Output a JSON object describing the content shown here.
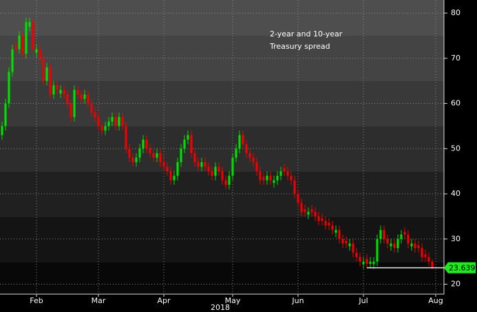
{
  "chart_data": {
    "type": "candlestick",
    "annotation": [
      "2-year and 10-year",
      "Treasury spread"
    ],
    "year_label": "2018",
    "up_color": "#00dd00",
    "down_color": "#ee0000",
    "grid": true,
    "ylim": [
      17.8,
      82.9
    ],
    "yticks": [
      20,
      30,
      40,
      50,
      60,
      70,
      80
    ],
    "xlim": [
      -0.6,
      128.4
    ],
    "xticks": [
      {
        "value": 10,
        "label": "Feb"
      },
      {
        "value": 28,
        "label": "Mar"
      },
      {
        "value": 47,
        "label": "Apr"
      },
      {
        "value": 67,
        "label": "May"
      },
      {
        "value": 86,
        "label": "Jun"
      },
      {
        "value": 105,
        "label": "Jul"
      },
      {
        "value": 126,
        "label": "Aug"
      }
    ],
    "open": [
      53,
      55,
      60,
      67,
      72.8,
      72,
      75,
      71,
      77,
      78,
      71.2,
      72,
      70,
      65,
      68,
      62,
      64,
      62.2,
      63,
      62,
      60,
      57,
      63,
      62,
      61,
      62,
      60,
      58,
      57,
      55,
      54,
      55,
      56,
      57,
      55,
      57,
      55,
      50,
      48,
      47,
      48,
      50,
      52,
      50,
      49,
      48,
      49,
      47,
      46,
      45,
      43,
      44,
      47,
      50,
      52,
      53,
      49,
      47,
      46,
      47,
      46,
      45,
      44,
      46,
      45,
      43,
      42,
      44,
      48,
      50,
      53,
      51,
      49,
      48,
      47,
      45,
      43.8,
      43,
      44,
      42.4,
      43,
      44,
      45.6,
      45,
      44,
      43,
      40,
      38,
      36.6,
      35.4,
      36.6,
      36,
      35,
      34.6,
      34,
      33.6,
      33,
      31.4,
      32,
      30,
      29.6,
      28.4,
      29,
      27,
      26,
      24.4,
      25.6,
      24.5,
      24.4,
      25,
      30,
      32,
      30,
      28.4,
      29,
      28,
      30,
      31.6,
      31,
      28.4,
      29,
      28.6,
      28,
      26.6,
      26,
      25
    ],
    "high": [
      56,
      61,
      68,
      73,
      73.8,
      76,
      76,
      79,
      79,
      79,
      73,
      73,
      71,
      69,
      69,
      65,
      65,
      64,
      64,
      63,
      61,
      64,
      64,
      63,
      63,
      63,
      61,
      59,
      58,
      56,
      56,
      57,
      58,
      58,
      58,
      58,
      56,
      51,
      49,
      49,
      51,
      53,
      53,
      51,
      50,
      50,
      50,
      48,
      47,
      46,
      45,
      48,
      51,
      53,
      54,
      54,
      50,
      48,
      48,
      48,
      47,
      46,
      47,
      47,
      46,
      44,
      45,
      49,
      51,
      54,
      54,
      52,
      50,
      49,
      48,
      46,
      44.8,
      45,
      45,
      44,
      45,
      46,
      46.6,
      46,
      45,
      44,
      41,
      39,
      37.6,
      37,
      37.6,
      37,
      36,
      35.6,
      35,
      34.6,
      34,
      33,
      33,
      31,
      30.6,
      30,
      30,
      28,
      27,
      26,
      26.6,
      26,
      26,
      31,
      33,
      33,
      31,
      30,
      30,
      31,
      32,
      32.6,
      32,
      30,
      30,
      29.6,
      29,
      27.6,
      27,
      25.5
    ],
    "low": [
      52,
      54,
      59,
      66,
      71,
      71,
      70,
      70,
      76,
      71,
      70.2,
      69,
      64,
      64,
      61,
      61,
      62,
      61.2,
      61,
      59,
      56,
      56,
      61,
      60,
      60,
      59,
      57,
      56,
      54,
      53,
      53,
      54,
      55,
      54,
      54,
      54,
      49,
      47,
      46,
      46,
      47,
      49,
      49,
      48,
      47,
      47,
      46,
      45,
      44,
      42,
      42,
      43,
      46,
      49,
      51,
      48,
      46,
      45,
      45,
      45,
      44,
      43,
      43,
      44,
      42,
      41,
      41,
      43,
      47,
      49,
      50,
      48,
      47,
      46,
      44,
      42,
      42,
      42,
      42,
      41.4,
      42,
      43,
      44,
      43,
      42,
      39,
      37,
      35,
      35,
      34.4,
      35,
      34,
      33,
      33,
      32,
      32,
      31,
      30.4,
      29,
      28,
      28,
      27.4,
      26,
      25,
      24,
      23.4,
      23.5,
      23.5,
      23.4,
      24,
      29,
      29,
      28,
      27.4,
      27,
      27,
      29,
      30,
      28,
      27.4,
      27,
      27,
      25,
      25,
      24,
      23.3
    ],
    "close": [
      55,
      60,
      67,
      72,
      72,
      75,
      71,
      78,
      78,
      72,
      72,
      70,
      65,
      68,
      62,
      64,
      63,
      63,
      62,
      60,
      57,
      63,
      62,
      61,
      62,
      60,
      58,
      57,
      55,
      54,
      55,
      56,
      57,
      55,
      57,
      55,
      50,
      48,
      47,
      48,
      50,
      52,
      50,
      49,
      48,
      49,
      47,
      46,
      45,
      43,
      44,
      47,
      50,
      52,
      53,
      49,
      47,
      46,
      47,
      46,
      45,
      44,
      46,
      45,
      43,
      42,
      44,
      48,
      50,
      53,
      51,
      49,
      48,
      47,
      45,
      43,
      43,
      44,
      43,
      43,
      44,
      45,
      45,
      44,
      43,
      40,
      38,
      36,
      36,
      36,
      36,
      35,
      34,
      34,
      33,
      33,
      32,
      32,
      30,
      29,
      29,
      29,
      27,
      26,
      25,
      25,
      24.5,
      25,
      25,
      30,
      32,
      30,
      29,
      29,
      28,
      30,
      31,
      31,
      29,
      29,
      28,
      28,
      26,
      26,
      25,
      23.639
    ]
  }
}
